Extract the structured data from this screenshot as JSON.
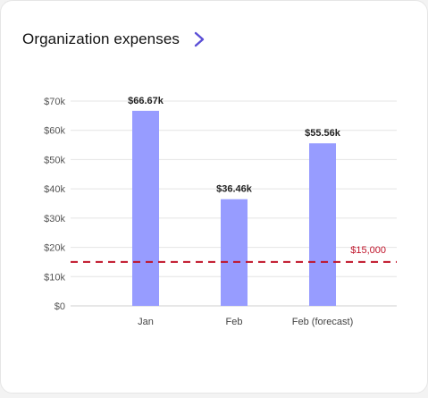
{
  "card": {
    "title": "Organization expenses",
    "title_link_icon": "chevron-right-icon",
    "accent_color": "#5b4fd6"
  },
  "chart_data": {
    "type": "bar",
    "categories": [
      "Jan",
      "Feb",
      "Feb (forecast)"
    ],
    "values": [
      66670,
      36460,
      55560
    ],
    "value_labels": [
      "$66.67k",
      "$36.46k",
      "$55.56k"
    ],
    "y_tick_values": [
      0,
      10000,
      20000,
      30000,
      40000,
      50000,
      60000,
      70000
    ],
    "y_tick_labels": [
      "$0",
      "$10k",
      "$20k",
      "$30k",
      "$40k",
      "$50k",
      "$60k",
      "$70k"
    ],
    "ylim": [
      0,
      70000
    ],
    "grid": true,
    "bar_color": "#979cff",
    "threshold": {
      "value": 15000,
      "label": "$15,000",
      "color": "#c0142a",
      "style": "dashed"
    }
  }
}
